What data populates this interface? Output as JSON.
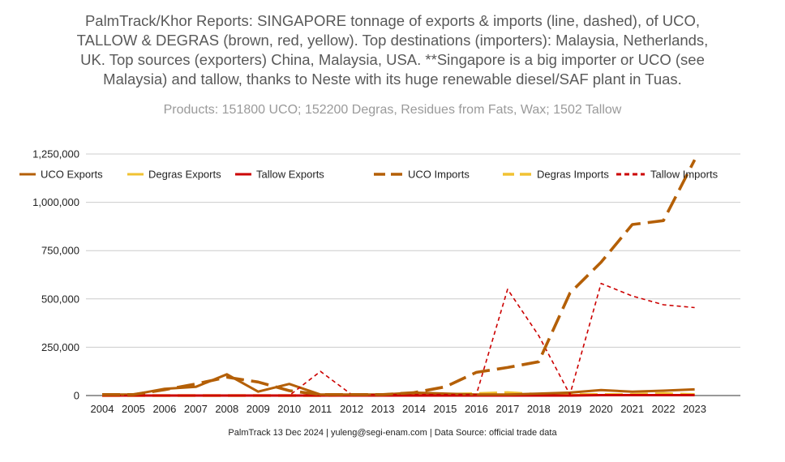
{
  "title_lines": [
    "PalmTrack/Khor Reports: SINGAPORE tonnage of exports & imports (line, dashed), of UCO,",
    "TALLOW & DEGRAS (brown, red, yellow). Top destinations (importers): Malaysia, Netherlands,",
    "UK. Top sources (exporters) China, Malaysia, USA. **Singapore is a big importer or UCO (see",
    "Malaysia) and tallow, thanks to Neste with its huge renewable diesel/SAF plant in Tuas."
  ],
  "subtitle": "Products: 151800 UCO; 152200 Degras, Residues from Fats, Wax; 1502 Tallow",
  "footer": "PalmTrack 13 Dec 2024  | yuleng@segi-enam.com | Data Source: official trade data",
  "chart_data": {
    "type": "line",
    "title": "PalmTrack/Khor Reports: SINGAPORE tonnage of exports & imports (line, dashed), of UCO, TALLOW & DEGRAS (brown, red, yellow)",
    "xlabel": "",
    "ylabel": "",
    "legend_position": "top",
    "grid": true,
    "categories": [
      "2004",
      "2005",
      "2006",
      "2007",
      "2008",
      "2009",
      "2010",
      "2011",
      "2012",
      "2013",
      "2014",
      "2015",
      "2016",
      "2017",
      "2018",
      "2019",
      "2020",
      "2021",
      "2022",
      "2023"
    ],
    "ylim": [
      0,
      1250000
    ],
    "yticks": [
      0,
      250000,
      500000,
      750000,
      1000000,
      1250000
    ],
    "ytick_labels": [
      "0",
      "250,000",
      "500,000",
      "750,000",
      "1,000,000",
      "1,250,000"
    ],
    "series": [
      {
        "name": "UCO Exports",
        "color": "#b45f06",
        "style": "solid",
        "values": [
          5000,
          5000,
          35000,
          45000,
          110000,
          20000,
          60000,
          5000,
          5000,
          5000,
          15000,
          10000,
          5000,
          5000,
          10000,
          15000,
          28000,
          20000,
          25000,
          32000
        ]
      },
      {
        "name": "Degras Exports",
        "color": "#f1c232",
        "style": "solid",
        "values": [
          0,
          0,
          0,
          0,
          0,
          0,
          0,
          0,
          0,
          0,
          0,
          0,
          2000,
          3000,
          2000,
          2000,
          2000,
          2000,
          2000,
          2000
        ]
      },
      {
        "name": "Tallow Exports",
        "color": "#cc0000",
        "style": "solid",
        "values": [
          0,
          0,
          0,
          0,
          0,
          0,
          0,
          0,
          0,
          0,
          0,
          0,
          0,
          0,
          0,
          0,
          2000,
          2000,
          2000,
          2000
        ]
      },
      {
        "name": "UCO Imports",
        "color": "#b45f06",
        "style": "dashed",
        "values": [
          5000,
          5000,
          30000,
          60000,
          95000,
          70000,
          25000,
          5000,
          5000,
          5000,
          15000,
          45000,
          120000,
          145000,
          175000,
          530000,
          690000,
          885000,
          905000,
          1220000
        ]
      },
      {
        "name": "Degras Imports",
        "color": "#f1c232",
        "style": "dashed",
        "values": [
          0,
          0,
          0,
          0,
          0,
          0,
          0,
          0,
          2000,
          2000,
          3000,
          5000,
          10000,
          15000,
          5000,
          5000,
          5000,
          5000,
          10000,
          5000
        ]
      },
      {
        "name": "Tallow Imports",
        "color": "#cc0000",
        "style": "dotted",
        "values": [
          0,
          0,
          0,
          0,
          0,
          0,
          0,
          125000,
          5000,
          5000,
          5000,
          5000,
          5000,
          550000,
          310000,
          5000,
          580000,
          515000,
          470000,
          455000
        ]
      }
    ]
  }
}
